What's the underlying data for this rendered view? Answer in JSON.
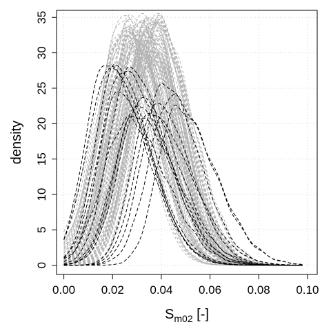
{
  "chart_data": {
    "type": "line",
    "xlabel": "S",
    "xlabel_subscript": "m02",
    "xlabel_unit": " [-]",
    "ylabel": "density",
    "xlim": [
      -0.003,
      0.104
    ],
    "ylim": [
      -1.3,
      36.0
    ],
    "x_ticks": [
      0.0,
      0.02,
      0.04,
      0.06,
      0.08,
      0.1
    ],
    "x_tick_labels": [
      "0.00",
      "0.02",
      "0.04",
      "0.06",
      "0.08",
      "0.10"
    ],
    "y_ticks": [
      0,
      5,
      10,
      15,
      20,
      25,
      30,
      35
    ],
    "y_tick_labels": [
      "0",
      "5",
      "10",
      "15",
      "20",
      "25",
      "30",
      "35"
    ],
    "grid": true,
    "series": [
      {
        "role": "gray-ensemble",
        "color": "#b3b3b3",
        "line_style": "dashed",
        "count": 100,
        "peak_x_range": [
          0.024,
          0.04
        ],
        "peak_y_range": [
          28,
          35.5
        ]
      },
      {
        "role": "black-curves",
        "color": "#000000",
        "line_style": "dashed",
        "curves": [
          {
            "peak_x": 0.017,
            "peak_y": 28.5
          },
          {
            "peak_x": 0.019,
            "peak_y": 27.8
          },
          {
            "peak_x": 0.021,
            "peak_y": 28.2
          },
          {
            "peak_x": 0.024,
            "peak_y": 27.5
          },
          {
            "peak_x": 0.027,
            "peak_y": 27.8
          },
          {
            "peak_x": 0.022,
            "peak_y": 24.5
          },
          {
            "peak_x": 0.03,
            "peak_y": 22.5
          },
          {
            "peak_x": 0.032,
            "peak_y": 23.5
          },
          {
            "peak_x": 0.035,
            "peak_y": 21.5
          },
          {
            "peak_x": 0.038,
            "peak_y": 22.8
          },
          {
            "peak_x": 0.041,
            "peak_y": 25.6
          },
          {
            "peak_x": 0.044,
            "peak_y": 23.8
          },
          {
            "peak_x": 0.029,
            "peak_y": 21.2
          },
          {
            "peak_x": 0.046,
            "peak_y": 22.2
          },
          {
            "peak_x": 0.026,
            "peak_y": 20.5
          }
        ]
      }
    ]
  }
}
